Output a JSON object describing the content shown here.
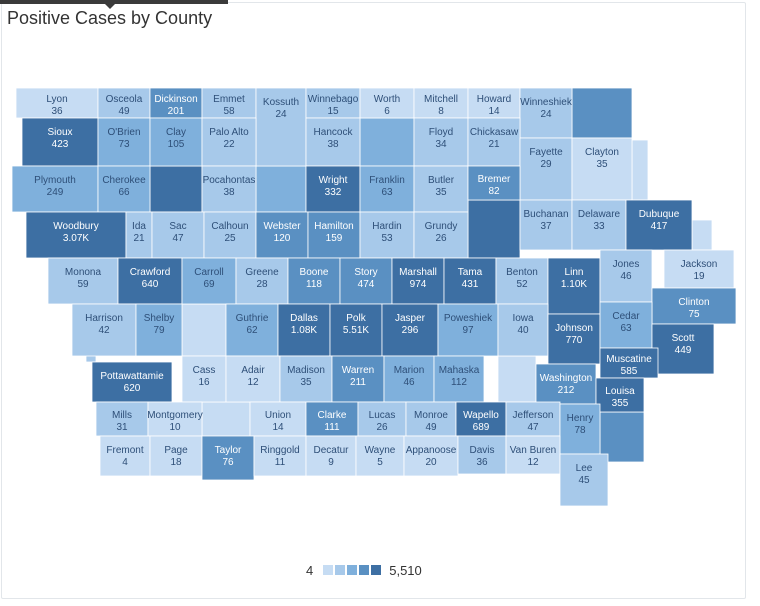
{
  "title": "Positive Cases by County",
  "legend": {
    "min": "4",
    "max": "5,510",
    "colors": [
      "#c6dcf3",
      "#a7c9ea",
      "#7fb0dc",
      "#5a90c2",
      "#3d6fa3"
    ]
  },
  "palette": {
    "0": "#c6dcf3",
    "1": "#a7c9ea",
    "2": "#7fb0dc",
    "3": "#5a90c2",
    "4": "#3d6fa3"
  },
  "counties": [
    {
      "name": "Lyon",
      "value": "36"
    },
    {
      "name": "Osceola",
      "value": "49"
    },
    {
      "name": "Dickinson",
      "value": "201"
    },
    {
      "name": "Emmet",
      "value": "58"
    },
    {
      "name": "Kossuth",
      "value": "24"
    },
    {
      "name": "Winnebago",
      "value": "15"
    },
    {
      "name": "Worth",
      "value": "6"
    },
    {
      "name": "Mitchell",
      "value": "8"
    },
    {
      "name": "Howard",
      "value": "14"
    },
    {
      "name": "Winneshiek",
      "value": "24"
    },
    {
      "name": "Sioux",
      "value": "423"
    },
    {
      "name": "O'Brien",
      "value": "73"
    },
    {
      "name": "Clay",
      "value": "105"
    },
    {
      "name": "Palo Alto",
      "value": "22"
    },
    {
      "name": "Hancock",
      "value": "38"
    },
    {
      "name": "Floyd",
      "value": "34"
    },
    {
      "name": "Chickasaw",
      "value": "21"
    },
    {
      "name": "Fayette",
      "value": "29"
    },
    {
      "name": "Clayton",
      "value": "35"
    },
    {
      "name": "Plymouth",
      "value": "249"
    },
    {
      "name": "Cherokee",
      "value": "66"
    },
    {
      "name": "Pocahontas",
      "value": "38"
    },
    {
      "name": "Wright",
      "value": "332"
    },
    {
      "name": "Franklin",
      "value": "63"
    },
    {
      "name": "Butler",
      "value": "35"
    },
    {
      "name": "Bremer",
      "value": "82"
    },
    {
      "name": "Woodbury",
      "value": "3.07K"
    },
    {
      "name": "Ida",
      "value": "21"
    },
    {
      "name": "Sac",
      "value": "47"
    },
    {
      "name": "Calhoun",
      "value": "25"
    },
    {
      "name": "Webster",
      "value": "120"
    },
    {
      "name": "Hamilton",
      "value": "159"
    },
    {
      "name": "Hardin",
      "value": "53"
    },
    {
      "name": "Grundy",
      "value": "26"
    },
    {
      "name": "Buchanan",
      "value": "37"
    },
    {
      "name": "Delaware",
      "value": "33"
    },
    {
      "name": "Dubuque",
      "value": "417"
    },
    {
      "name": "Jackson",
      "value": "19"
    },
    {
      "name": "Monona",
      "value": "59"
    },
    {
      "name": "Crawford",
      "value": "640"
    },
    {
      "name": "Carroll",
      "value": "69"
    },
    {
      "name": "Greene",
      "value": "28"
    },
    {
      "name": "Boone",
      "value": "118"
    },
    {
      "name": "Story",
      "value": "474"
    },
    {
      "name": "Marshall",
      "value": "974"
    },
    {
      "name": "Tama",
      "value": "431"
    },
    {
      "name": "Benton",
      "value": "52"
    },
    {
      "name": "Linn",
      "value": "1.10K"
    },
    {
      "name": "Jones",
      "value": "46"
    },
    {
      "name": "Clinton",
      "value": "75"
    },
    {
      "name": "Harrison",
      "value": "42"
    },
    {
      "name": "Shelby",
      "value": "79"
    },
    {
      "name": "Guthrie",
      "value": "62"
    },
    {
      "name": "Dallas",
      "value": "1.08K"
    },
    {
      "name": "Polk",
      "value": "5.51K"
    },
    {
      "name": "Jasper",
      "value": "296"
    },
    {
      "name": "Poweshiek",
      "value": "97"
    },
    {
      "name": "Iowa",
      "value": "40"
    },
    {
      "name": "Johnson",
      "value": "770"
    },
    {
      "name": "Cedar",
      "value": "63"
    },
    {
      "name": "Scott",
      "value": "449"
    },
    {
      "name": "Muscatine",
      "value": "585"
    },
    {
      "name": "Pottawattamie",
      "value": "620"
    },
    {
      "name": "Cass",
      "value": "16"
    },
    {
      "name": "Adair",
      "value": "12"
    },
    {
      "name": "Madison",
      "value": "35"
    },
    {
      "name": "Warren",
      "value": "211"
    },
    {
      "name": "Marion",
      "value": "46"
    },
    {
      "name": "Mahaska",
      "value": "112"
    },
    {
      "name": "Washington",
      "value": "212"
    },
    {
      "name": "Louisa",
      "value": "355"
    },
    {
      "name": "Mills",
      "value": "31"
    },
    {
      "name": "Montgomery",
      "value": "10"
    },
    {
      "name": "Union",
      "value": "14"
    },
    {
      "name": "Clarke",
      "value": "111"
    },
    {
      "name": "Lucas",
      "value": "26"
    },
    {
      "name": "Monroe",
      "value": "49"
    },
    {
      "name": "Wapello",
      "value": "689"
    },
    {
      "name": "Jefferson",
      "value": "47"
    },
    {
      "name": "Henry",
      "value": "78"
    },
    {
      "name": "Fremont",
      "value": "4"
    },
    {
      "name": "Page",
      "value": "18"
    },
    {
      "name": "Taylor",
      "value": "76"
    },
    {
      "name": "Ringgold",
      "value": "11"
    },
    {
      "name": "Decatur",
      "value": "9"
    },
    {
      "name": "Wayne",
      "value": "5"
    },
    {
      "name": "Appanoose",
      "value": "20"
    },
    {
      "name": "Davis",
      "value": "36"
    },
    {
      "name": "Van Buren",
      "value": "12"
    },
    {
      "name": "Lee",
      "value": "45"
    }
  ]
}
